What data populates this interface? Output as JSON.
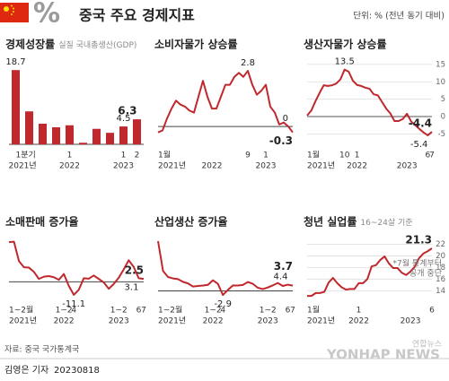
{
  "header": {
    "symbol": "%",
    "title": "중국 주요 경제지표",
    "unit": "단위: % (전년 동기 대비)"
  },
  "chart_data": [
    {
      "type": "bar",
      "title": "경제성장률",
      "subtitle": "실질 국내총생산(GDP)",
      "color": "#c0282d",
      "categories": [
        "1분기",
        null,
        null,
        null,
        "1",
        null,
        null,
        null,
        "1",
        "2"
      ],
      "years": [
        "2021년",
        null,
        null,
        null,
        "2022",
        null,
        null,
        null,
        "2023",
        null
      ],
      "values": [
        18.7,
        8.3,
        5.2,
        4.3,
        4.8,
        0.4,
        3.9,
        2.9,
        4.5,
        6.3
      ],
      "ylim": [
        0,
        21
      ],
      "baseline": 0,
      "labeled_points": [
        {
          "index": 0,
          "side": "above"
        },
        {
          "index": 8,
          "side": "above"
        },
        {
          "index": 9,
          "side": "above"
        }
      ]
    },
    {
      "type": "line",
      "title": "소비자물가 상승률",
      "color": "#c0282d",
      "categories": [
        "1월",
        null,
        null,
        null,
        null,
        null,
        null,
        null,
        null,
        null,
        null,
        null,
        null,
        null,
        null,
        null,
        null,
        null,
        null,
        null,
        "9",
        null,
        null,
        null,
        "1",
        null,
        null,
        null,
        null,
        null,
        null
      ],
      "years": [
        "2021년",
        null,
        null,
        null,
        null,
        null,
        null,
        null,
        null,
        null,
        null,
        null,
        "2022",
        null,
        null,
        null,
        null,
        null,
        null,
        null,
        null,
        null,
        null,
        null,
        "2023",
        null,
        null,
        null,
        null,
        null,
        null
      ],
      "values": [
        -0.3,
        -0.2,
        0.4,
        0.9,
        1.3,
        1.1,
        1.0,
        0.8,
        0.7,
        1.5,
        2.3,
        1.5,
        0.9,
        0.9,
        1.5,
        2.1,
        2.1,
        2.5,
        2.7,
        2.5,
        2.8,
        2.1,
        1.6,
        1.8,
        2.1,
        1.0,
        0.7,
        0.1,
        0.2,
        0.0,
        -0.3
      ],
      "ylim": [
        -0.9,
        3.3
      ],
      "baseline": 0,
      "labeled_points": [
        {
          "index": 20,
          "side": "above"
        },
        {
          "index": 29,
          "side": "above"
        },
        {
          "index": 30,
          "side": "below"
        }
      ]
    },
    {
      "type": "line",
      "title": "생산자물가 상승률",
      "color": "#c0282d",
      "categories": [
        "1월",
        null,
        null,
        null,
        null,
        null,
        null,
        null,
        null,
        "10",
        null,
        null,
        "1",
        null,
        null,
        null,
        null,
        null,
        null,
        null,
        null,
        null,
        null,
        null,
        null,
        null,
        null,
        null,
        null,
        "6",
        "7"
      ],
      "years": [
        "2021년",
        null,
        null,
        null,
        null,
        null,
        null,
        null,
        null,
        null,
        null,
        null,
        "2022",
        null,
        null,
        null,
        null,
        null,
        null,
        null,
        null,
        null,
        null,
        null,
        "2023",
        null,
        null,
        null,
        null,
        null,
        null
      ],
      "values": [
        0.3,
        1.7,
        4.4,
        6.8,
        9.0,
        8.8,
        9.0,
        9.5,
        10.7,
        13.5,
        12.9,
        10.3,
        9.1,
        8.8,
        8.3,
        8.0,
        6.4,
        6.1,
        4.2,
        2.3,
        0.9,
        -1.3,
        -1.3,
        -0.7,
        0.8,
        -1.4,
        -2.5,
        -3.6,
        -4.6,
        -5.4,
        -4.4
      ],
      "ylim": [
        -8,
        16
      ],
      "yticks": [
        -5,
        0,
        5,
        10,
        15
      ],
      "grid": true,
      "labeled_points": [
        {
          "index": 9,
          "side": "above"
        },
        {
          "index": 29,
          "side": "below"
        },
        {
          "index": 30,
          "side": "above"
        }
      ]
    },
    {
      "type": "line",
      "title": "소매판매 증가율",
      "color": "#c0282d",
      "categories": [
        "1~2월",
        null,
        null,
        null,
        null,
        null,
        null,
        null,
        null,
        null,
        null,
        "1~2",
        null,
        "4",
        null,
        null,
        null,
        null,
        null,
        null,
        null,
        null,
        "1~2",
        null,
        null,
        null,
        "6",
        "7"
      ],
      "years": [
        "2021년",
        null,
        null,
        null,
        null,
        null,
        null,
        null,
        null,
        null,
        null,
        "2022",
        null,
        null,
        null,
        null,
        null,
        null,
        null,
        null,
        null,
        null,
        "2023",
        null,
        null,
        null,
        null,
        null
      ],
      "values": [
        33.8,
        34.2,
        17.7,
        12.4,
        12.1,
        8.5,
        2.5,
        4.4,
        4.9,
        3.9,
        1.7,
        6.7,
        -3.5,
        -11.1,
        -6.7,
        3.1,
        2.7,
        5.4,
        2.5,
        -0.5,
        -5.9,
        -1.8,
        3.5,
        10.6,
        18.4,
        12.7,
        3.1,
        2.5
      ],
      "ylim": [
        -15,
        37
      ],
      "baseline": 0,
      "labeled_points": [
        {
          "index": 13,
          "side": "below"
        },
        {
          "index": 26,
          "side": "below"
        },
        {
          "index": 27,
          "side": "above"
        }
      ]
    },
    {
      "type": "line",
      "title": "산업생산 증가율",
      "color": "#c0282d",
      "categories": [
        "1~2월",
        null,
        null,
        null,
        null,
        null,
        null,
        null,
        null,
        null,
        null,
        "1~2",
        null,
        "4",
        null,
        null,
        null,
        null,
        null,
        null,
        null,
        null,
        "1~2",
        null,
        null,
        null,
        "6",
        "7"
      ],
      "years": [
        "2021년",
        null,
        null,
        null,
        null,
        null,
        null,
        null,
        null,
        null,
        null,
        "2022",
        null,
        null,
        null,
        null,
        null,
        null,
        null,
        null,
        null,
        null,
        "2023",
        null,
        null,
        null,
        null,
        null
      ],
      "values": [
        35.1,
        14.1,
        9.8,
        8.8,
        8.3,
        6.4,
        5.3,
        3.1,
        3.5,
        3.8,
        4.3,
        7.5,
        5.0,
        -2.9,
        0.7,
        3.9,
        3.8,
        4.2,
        6.3,
        5.0,
        2.2,
        1.3,
        2.4,
        3.9,
        5.6,
        3.5,
        4.4,
        3.7
      ],
      "ylim": [
        -6,
        37
      ],
      "baseline": 0,
      "labeled_points": [
        {
          "index": 13,
          "side": "below"
        },
        {
          "index": 26,
          "side": "above"
        },
        {
          "index": 27,
          "side": "above2"
        }
      ]
    },
    {
      "type": "line",
      "title": "청년 실업률",
      "subtitle": "16~24살 기준",
      "color": "#c0282d",
      "categories": [
        "1월",
        null,
        null,
        null,
        null,
        null,
        null,
        null,
        null,
        null,
        null,
        null,
        "1",
        null,
        null,
        null,
        null,
        null,
        null,
        null,
        null,
        null,
        null,
        null,
        null,
        null,
        null,
        null,
        null,
        "6"
      ],
      "years": [
        "2021년",
        null,
        null,
        null,
        null,
        null,
        null,
        null,
        null,
        null,
        null,
        null,
        "2022",
        null,
        null,
        null,
        null,
        null,
        null,
        null,
        null,
        null,
        null,
        null,
        "2023",
        null,
        null,
        null,
        null,
        null
      ],
      "values": [
        13.1,
        13.1,
        13.6,
        13.6,
        13.8,
        15.4,
        16.2,
        15.3,
        14.6,
        14.2,
        14.3,
        14.3,
        15.3,
        15.3,
        16.0,
        18.2,
        18.4,
        19.3,
        19.9,
        18.7,
        17.9,
        17.9,
        17.1,
        16.7,
        17.3,
        18.1,
        19.6,
        20.4,
        20.8,
        21.3
      ],
      "ylim": [
        12.5,
        23
      ],
      "yticks": [
        14,
        16,
        18,
        20,
        22
      ],
      "grid": true,
      "note": [
        "*7월 통계부터",
        "공개 중단"
      ],
      "labeled_points": [
        {
          "index": 29,
          "side": "above"
        }
      ]
    }
  ],
  "footer": {
    "source": "자료: 중국 국가통계국",
    "byline": "김영은 기자",
    "date": "20230818",
    "watermark": "YONHAP NEWS",
    "agency": "연합뉴스"
  }
}
